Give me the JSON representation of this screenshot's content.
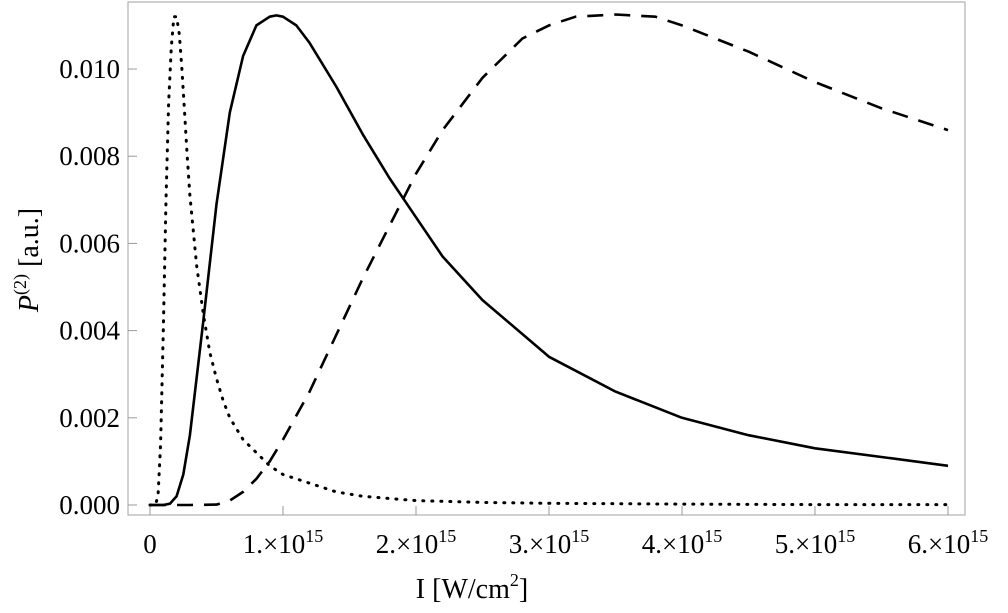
{
  "chart_data": {
    "type": "line",
    "xlabel": "I [W/cm",
    "xlabel_sup": "2",
    "xlabel_end": "]",
    "ylabel_p": "P",
    "ylabel_sup": "(2)",
    "ylabel_unit": "[a.u.]",
    "xlim": [
      0,
      6000000000000000.0
    ],
    "ylim": [
      0,
      0.0114
    ],
    "x_ticks": [
      {
        "value": 0,
        "mant": "0",
        "exp": ""
      },
      {
        "value": 1000000000000000.0,
        "mant": "1.×10",
        "exp": "15"
      },
      {
        "value": 2000000000000000.0,
        "mant": "2.×10",
        "exp": "15"
      },
      {
        "value": 3000000000000000.0,
        "mant": "3.×10",
        "exp": "15"
      },
      {
        "value": 4000000000000000.0,
        "mant": "4.×10",
        "exp": "15"
      },
      {
        "value": 5000000000000000.0,
        "mant": "5.×10",
        "exp": "15"
      },
      {
        "value": 6000000000000000.0,
        "mant": "6.×10",
        "exp": "15"
      }
    ],
    "y_ticks": [
      {
        "value": 0.0,
        "label": "0.000"
      },
      {
        "value": 0.002,
        "label": "0.002"
      },
      {
        "value": 0.004,
        "label": "0.004"
      },
      {
        "value": 0.006,
        "label": "0.006"
      },
      {
        "value": 0.008,
        "label": "0.008"
      },
      {
        "value": 0.01,
        "label": "0.010"
      }
    ],
    "grid": false,
    "legend": "none",
    "series": [
      {
        "style": "dotted",
        "x": [
          0,
          20000000000000.0,
          40000000000000.0,
          60000000000000.0,
          80000000000000.0,
          100000000000000.0,
          120000000000000.0,
          140000000000000.0,
          160000000000000.0,
          180000000000000.0,
          200000000000000.0,
          220000000000000.0,
          240000000000000.0,
          260000000000000.0,
          280000000000000.0,
          300000000000000.0,
          350000000000000.0,
          400000000000000.0,
          450000000000000.0,
          500000000000000.0,
          550000000000000.0,
          600000000000000.0,
          700000000000000.0,
          800000000000000.0,
          900000000000000.0,
          1000000000000000.0,
          1200000000000000.0,
          1400000000000000.0,
          1600000000000000.0,
          1800000000000000.0,
          2000000000000000.0,
          2500000000000000.0,
          3000000000000000.0,
          3500000000000000.0,
          4000000000000000.0,
          5000000000000000.0,
          6000000000000000.0
        ],
        "y": [
          0,
          0,
          0.0,
          0.0002,
          0.0014,
          0.004,
          0.007,
          0.0092,
          0.0105,
          0.0112,
          0.0112,
          0.0108,
          0.01,
          0.009,
          0.008,
          0.0071,
          0.0055,
          0.0044,
          0.0035,
          0.0029,
          0.0024,
          0.002,
          0.0015,
          0.0012,
          0.0009,
          0.0007,
          0.0005,
          0.0003,
          0.0002,
          0.00015,
          0.0001,
          6e-05,
          4e-05,
          3e-05,
          2e-05,
          1e-05,
          1e-05
        ]
      },
      {
        "style": "solid",
        "x": [
          0,
          100000000000000.0,
          150000000000000.0,
          200000000000000.0,
          250000000000000.0,
          300000000000000.0,
          400000000000000.0,
          500000000000000.0,
          600000000000000.0,
          700000000000000.0,
          800000000000000.0,
          900000000000000.0,
          950000000000000.0,
          1000000000000000.0,
          1100000000000000.0,
          1200000000000000.0,
          1400000000000000.0,
          1600000000000000.0,
          1800000000000000.0,
          2000000000000000.0,
          2200000000000000.0,
          2500000000000000.0,
          3000000000000000.0,
          3500000000000000.0,
          4000000000000000.0,
          4500000000000000.0,
          5000000000000000.0,
          5500000000000000.0,
          6000000000000000.0
        ],
        "y": [
          0,
          0,
          3e-05,
          0.0002,
          0.0007,
          0.0016,
          0.0042,
          0.0069,
          0.009,
          0.0103,
          0.011,
          0.0112,
          0.01123,
          0.0112,
          0.011,
          0.0106,
          0.0096,
          0.0085,
          0.0075,
          0.0066,
          0.0057,
          0.0047,
          0.0034,
          0.0026,
          0.002,
          0.0016,
          0.0013,
          0.0011,
          0.0009
        ]
      },
      {
        "style": "dashed",
        "x": [
          0,
          300000000000000.0,
          500000000000000.0,
          600000000000000.0,
          700000000000000.0,
          800000000000000.0,
          900000000000000.0,
          1000000000000000.0,
          1200000000000000.0,
          1400000000000000.0,
          1600000000000000.0,
          1800000000000000.0,
          2000000000000000.0,
          2200000000000000.0,
          2500000000000000.0,
          2800000000000000.0,
          3000000000000000.0,
          3200000000000000.0,
          3500000000000000.0,
          3800000000000000.0,
          4000000000000000.0,
          4500000000000000.0,
          5000000000000000.0,
          5500000000000000.0,
          6000000000000000.0
        ],
        "y": [
          0,
          0,
          1e-05,
          0.0001,
          0.0003,
          0.0006,
          0.001,
          0.0015,
          0.0026,
          0.0039,
          0.0052,
          0.0064,
          0.0076,
          0.0086,
          0.0098,
          0.0107,
          0.011,
          0.0112,
          0.01125,
          0.0112,
          0.011,
          0.0104,
          0.0097,
          0.0091,
          0.0086
        ]
      }
    ]
  }
}
